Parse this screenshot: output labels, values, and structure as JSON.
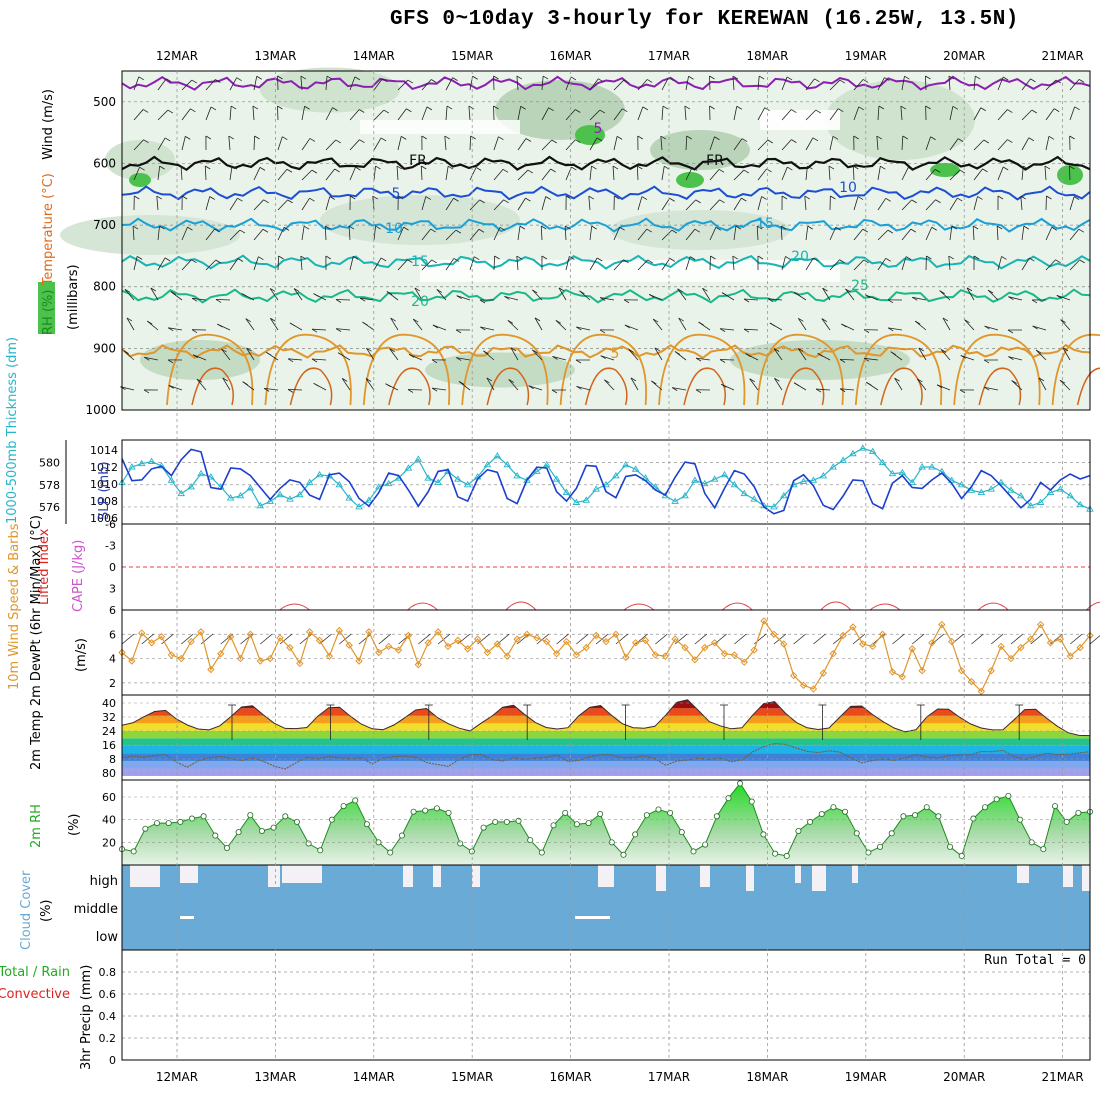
{
  "title": "GFS 0~10day 3-hourly for KEREWAN (16.25W, 13.5N)",
  "dates": [
    "12MAR",
    "13MAR",
    "14MAR",
    "15MAR",
    "16MAR",
    "17MAR",
    "18MAR",
    "19MAR",
    "20MAR",
    "21MAR"
  ],
  "colors": {
    "temp_contour": "#1f4fd0",
    "rh_fill": "#4cc24c",
    "slp": "#1b3fcf",
    "thickness": "#27b5c9",
    "wind10": "#e0962a",
    "temp2m": "#c81e1e",
    "rh2m": "#3cc13c",
    "cloud": "#6aaad6"
  },
  "chart_data": [
    {
      "type": "heatmap",
      "id": "upper",
      "ylabel_parts": [
        {
          "text": "RH (%)",
          "color": "#1b8a1b"
        },
        {
          "text": "Temperature (°C)",
          "color": "#e06a1a"
        },
        {
          "text": "Wind (m/s)",
          "color": "#000000"
        }
      ],
      "ylabel2": "(millibars)",
      "y_ticks": [
        500,
        600,
        700,
        800,
        900,
        1000
      ],
      "ylim": [
        450,
        1000
      ],
      "contour_labels": [
        "5",
        "FR",
        "FR",
        "5",
        "10",
        "10",
        "15",
        "15",
        "20",
        "20",
        "25",
        "5"
      ],
      "isotherms": [
        {
          "label": "-5",
          "level": 470
        },
        {
          "label": "0",
          "level": 600
        },
        {
          "label": "5",
          "level": 648
        },
        {
          "label": "10",
          "level": 700
        },
        {
          "label": "15",
          "level": 760
        },
        {
          "label": "20",
          "level": 815
        },
        {
          "label": "25",
          "level": 905
        }
      ]
    },
    {
      "type": "line",
      "id": "pressure",
      "ylabel_left": "1000-500mb Thickness (dm)",
      "ylabel_right": "SLP (mb)",
      "left_ticks": [
        576,
        578,
        580
      ],
      "right_ticks": [
        1006,
        1008,
        1010,
        1012,
        1014
      ],
      "series": [
        {
          "name": "1000-500mb Thickness (dm)",
          "values": [
            578.2,
            579.6,
            579.9,
            580.1,
            579.7,
            578.4,
            577.2,
            577.8,
            579.0,
            578.7,
            577.8,
            576.8,
            577.0,
            577.7,
            576.1,
            576.5,
            577.1,
            576.7,
            577.1,
            578.2,
            578.9,
            578.8,
            578.0,
            576.8,
            576.0,
            576.6,
            577.8,
            578.1,
            578.6,
            579.5,
            580.3,
            578.6,
            578.2,
            579.2,
            578.5,
            578.0,
            578.7,
            579.8,
            580.6,
            579.8,
            578.8,
            578.4,
            579.2,
            579.8,
            578.5,
            577.3,
            576.4,
            576.6,
            577.6,
            578.0,
            578.8,
            579.8,
            579.4,
            578.6,
            577.8,
            577.0,
            576.5,
            577.0,
            578.4,
            578.1,
            578.5,
            578.9,
            578.0,
            577.2,
            576.7,
            576.1,
            576.0,
            577.0,
            578.0,
            578.3,
            578.4,
            578.8,
            579.6,
            580.2,
            580.8,
            581.3,
            581.0,
            580.0,
            579.0,
            579.1,
            578.2,
            579.6,
            579.6,
            579.2,
            578.4,
            578.0,
            577.5,
            577.3,
            577.6,
            578.2,
            577.5,
            577.0,
            576.1,
            576.4,
            577.3,
            577.6,
            577.0,
            576.2,
            575.8
          ]
        },
        {
          "name": "SLP (mb)",
          "values": [
            1013.0,
            1010.4,
            1010.5,
            1011.8,
            1012.1,
            1011.0,
            1012.9,
            1014.1,
            1013.8,
            1009.6,
            1009.4,
            1011.9,
            1011.8,
            1011.0,
            1009.6,
            1008.2,
            1009.5,
            1010.5,
            1010.2,
            1008.7,
            1008.2,
            1011.1,
            1011.3,
            1010.3,
            1008.3,
            1007.4,
            1009.0,
            1011.3,
            1011.0,
            1009.3,
            1007.4,
            1009.1,
            1011.5,
            1011.7,
            1008.5,
            1008.0,
            1010.6,
            1011.7,
            1011.4,
            1008.3,
            1007.7,
            1010.5,
            1012.0,
            1011.9,
            1009.1,
            1008.0,
            1009.5,
            1012.2,
            1012.1,
            1009.1,
            1008.4,
            1010.9,
            1011.1,
            1010.4,
            1009.3,
            1008.7,
            1010.8,
            1012.6,
            1012.4,
            1008.9,
            1007.2,
            1009.5,
            1011.6,
            1011.2,
            1009.7,
            1007.3,
            1006.5,
            1006.9,
            1010.4,
            1011.1,
            1009.8,
            1007.5,
            1007.0,
            1008.6,
            1010.5,
            1010.4,
            1007.7,
            1007.1,
            1010.1,
            1011.0,
            1009.6,
            1009.5,
            1010.5,
            1011.3,
            1010.1,
            1008.3,
            1009.7,
            1011.6,
            1011.0,
            1009.8,
            1008.5,
            1007.2,
            1008.2,
            1010.2,
            1009.3,
            1010.5,
            1011.2,
            1010.6,
            1011.0
          ]
        }
      ]
    },
    {
      "type": "line",
      "id": "stability",
      "ylabel_left": "Lifted Index",
      "ylabel_right": "CAPE (J/kg)",
      "ticks": [
        "-6",
        "-3",
        "0",
        "3",
        "6"
      ],
      "ylim": [
        -6,
        6
      ],
      "series": [
        {
          "name": "Lifted Index",
          "values": []
        },
        {
          "name": "CAPE (J/kg)",
          "values": []
        }
      ]
    },
    {
      "type": "line",
      "id": "wind10m",
      "ylabel": "10m Wind Speed & Barbs",
      "yunit": "(m/s)",
      "y_ticks": [
        2,
        4,
        6
      ],
      "ylim": [
        1,
        8
      ],
      "series": [
        {
          "name": "10m Wind Speed",
          "values": [
            4.5,
            3.8,
            6.1,
            5.3,
            5.8,
            4.3,
            4.0,
            5.4,
            6.2,
            3.1,
            4.4,
            5.8,
            4.0,
            6.0,
            3.8,
            4.0,
            5.7,
            4.9,
            3.6,
            6.2,
            5.5,
            4.2,
            6.3,
            5.1,
            3.8,
            6.2,
            4.5,
            5.0,
            4.7,
            5.9,
            3.5,
            5.3,
            6.2,
            5.0,
            5.5,
            4.8,
            5.6,
            4.5,
            5.2,
            4.2,
            5.6,
            6.0,
            5.7,
            5.4,
            4.4,
            5.4,
            4.3,
            4.9,
            5.9,
            5.4,
            6.0,
            4.1,
            5.3,
            5.5,
            4.3,
            4.2,
            5.6,
            4.9,
            3.9,
            4.9,
            5.3,
            4.4,
            4.3,
            3.7,
            4.7,
            7.1,
            6.0,
            5.2,
            2.6,
            1.8,
            1.5,
            2.8,
            4.4,
            5.9,
            6.6,
            5.2,
            5.0,
            6.0,
            2.9,
            2.5,
            4.8,
            3.0,
            5.3,
            6.8,
            5.4,
            3.0,
            2.1,
            1.3,
            3.0,
            5.0,
            4.0,
            4.9,
            5.6,
            6.8,
            5.3,
            5.6,
            4.2,
            4.9,
            5.9
          ]
        }
      ]
    },
    {
      "type": "area",
      "id": "temp2m",
      "ylabel": "2m Temp 2m DewPt (6hr Min/Max) (°C)",
      "y_ticks": [
        40,
        32,
        24,
        16,
        8,
        80
      ],
      "series": [
        {
          "name": "2m Temp",
          "values": [
            27.0,
            28.3,
            31.5,
            34.3,
            34.9,
            30.3,
            27.1,
            25.0,
            24.5,
            26.7,
            31.6,
            36.7,
            37.3,
            32.5,
            28.0,
            25.3,
            25.2,
            25.8,
            31.8,
            36.3,
            36.6,
            31.8,
            27.6,
            25.1,
            24.6,
            27.1,
            31.0,
            35.1,
            35.9,
            31.1,
            27.8,
            25.4,
            24.0,
            28.0,
            31.8,
            36.6,
            37.6,
            32.8,
            28.5,
            25.8,
            25.0,
            25.7,
            32.0,
            36.5,
            37.5,
            32.3,
            27.8,
            25.7,
            25.4,
            26.4,
            32.4,
            39.2,
            40.5,
            34.8,
            28.9,
            26.7,
            25.1,
            25.6,
            32.5,
            38.5,
            39.5,
            33.4,
            28.5,
            25.6,
            24.7,
            25.5,
            31.3,
            37.0,
            37.2,
            32.7,
            28.8,
            25.5,
            23.5,
            24.6,
            31.4,
            35.6,
            35.5,
            31.3,
            27.7,
            25.5,
            24.5,
            24.6,
            29.8,
            35.3,
            35.5,
            30.8,
            26.4,
            23.0,
            21.6,
            21.5
          ]
        },
        {
          "name": "2m DewPt",
          "values": [
            9.6,
            10.7,
            10.0,
            10.9,
            11.4,
            7.4,
            4.7,
            8.1,
            9.6,
            10.4,
            9.3,
            8.2,
            9.7,
            7.8,
            5.2,
            3.7,
            7.0,
            10.0,
            9.1,
            10.4,
            9.7,
            9.1,
            9.8,
            6.4,
            9.4,
            10.3,
            10.6,
            10.0,
            7.2,
            6.1,
            5.1,
            8.9,
            11.2,
            11.5,
            8.8,
            8.0,
            9.7,
            8.9,
            9.4,
            10.0,
            11.2,
            7.7,
            8.3,
            10.3,
            11.4,
            11.2,
            9.7,
            9.8,
            10.8,
            9.2,
            5.7,
            8.0,
            8.5,
            9.5,
            8.8,
            9.5,
            7.6,
            8.6,
            12.9,
            15.6,
            17.3,
            16.8,
            14.9,
            13.1,
            12.5,
            13.4,
            12.7,
            9.7,
            7.0,
            8.2,
            9.1,
            8.3,
            9.6,
            11.4,
            10.1,
            9.5,
            10.9,
            11.1,
            11.2,
            13.0,
            12.9,
            13.6,
            10.4,
            8.6,
            10.4,
            12.1,
            11.4,
            11.6,
            12.3,
            12.9
          ]
        }
      ]
    },
    {
      "type": "area",
      "id": "rh2m",
      "ylabel": "2m RH",
      "yunit": "(%)",
      "y_ticks": [
        20,
        40,
        60
      ],
      "ylim": [
        0,
        75
      ],
      "series": [
        {
          "name": "2m RH",
          "values": [
            14,
            12,
            32,
            37,
            37,
            38,
            41,
            43,
            26,
            15,
            29,
            44,
            30,
            33,
            43,
            38,
            19,
            13,
            40,
            52,
            57,
            36,
            20,
            11,
            26,
            47,
            48,
            50,
            46,
            19,
            12,
            33,
            38,
            38,
            39,
            22,
            11,
            35,
            46,
            36,
            37,
            45,
            20,
            9,
            27,
            44,
            49,
            46,
            29,
            12,
            18,
            43,
            59,
            72,
            56,
            27,
            10,
            8,
            30,
            38,
            45,
            51,
            47,
            28,
            11,
            16,
            28,
            43,
            44,
            51,
            43,
            16,
            8,
            41,
            51,
            58,
            61,
            40,
            20,
            14,
            52,
            38,
            46,
            47
          ]
        }
      ]
    },
    {
      "type": "table",
      "id": "cloud",
      "ylabel": "Cloud Cover",
      "yunit": "(%)",
      "rows": [
        "high",
        "middle",
        "low"
      ]
    },
    {
      "type": "bar",
      "id": "precip",
      "ylabel_parts": [
        {
          "text": "Total / Rain",
          "color": "#22aa22"
        },
        {
          "text": "Convective",
          "color": "#dd2222"
        }
      ],
      "ylabel2": "3hr Precip (mm)",
      "y_ticks": [
        "0",
        "0.2",
        "0.4",
        "0.6",
        "0.8"
      ],
      "ylim": [
        0,
        1
      ],
      "run_total": "Run Total = 0",
      "values": []
    }
  ]
}
